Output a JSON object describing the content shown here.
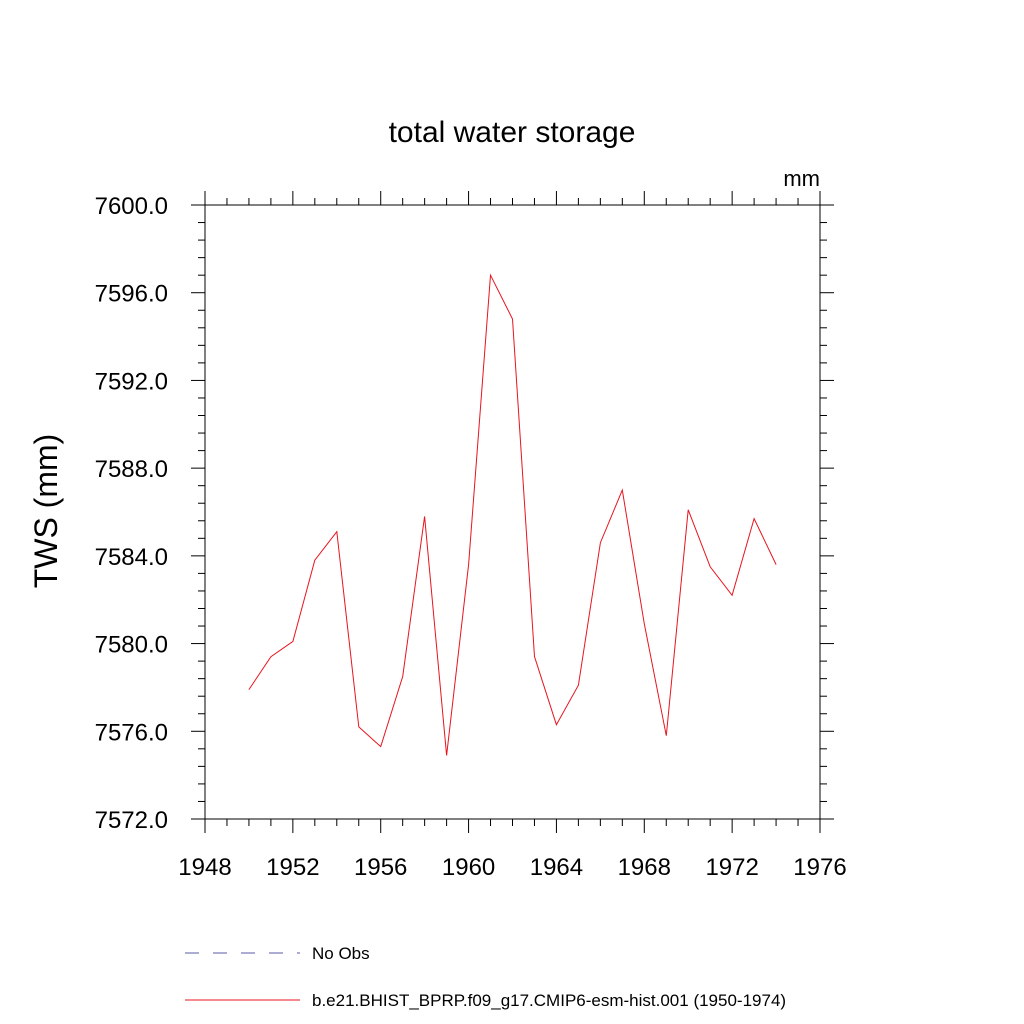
{
  "chart_data": {
    "type": "line",
    "title": "total water storage",
    "units_label": "mm",
    "xlabel": "",
    "ylabel": "TWS  (mm)",
    "xlim": [
      1948,
      1976
    ],
    "ylim": [
      7572.0,
      7600.0
    ],
    "x_ticks": [
      1948,
      1952,
      1956,
      1960,
      1964,
      1968,
      1972,
      1976
    ],
    "x_tick_labels": [
      "1948",
      "1952",
      "1956",
      "1960",
      "1964",
      "1968",
      "1972",
      "1976"
    ],
    "y_ticks": [
      7572.0,
      7576.0,
      7580.0,
      7584.0,
      7588.0,
      7592.0,
      7596.0,
      7600.0
    ],
    "y_tick_labels": [
      "7572.0",
      "7576.0",
      "7580.0",
      "7584.0",
      "7588.0",
      "7592.0",
      "7596.0",
      "7600.0"
    ],
    "grid": false,
    "legend_position": "bottom",
    "series": [
      {
        "name": "No Obs",
        "color": "#5a5aa8",
        "style": "dashed",
        "x": [],
        "values": []
      },
      {
        "name": "b.e21.BHIST_BPRP.f09_g17.CMIP6-esm-hist.001 (1950-1974)",
        "color": "#e8141e",
        "style": "solid",
        "x": [
          1950,
          1951,
          1952,
          1953,
          1954,
          1955,
          1956,
          1957,
          1958,
          1959,
          1960,
          1961,
          1962,
          1963,
          1964,
          1965,
          1966,
          1967,
          1968,
          1969,
          1970,
          1971,
          1972,
          1973,
          1974
        ],
        "values": [
          7577.9,
          7579.4,
          7580.1,
          7583.8,
          7585.1,
          7576.2,
          7575.3,
          7578.5,
          7585.8,
          7574.9,
          7583.6,
          7596.8,
          7594.8,
          7579.4,
          7576.3,
          7578.1,
          7584.6,
          7587.0,
          7580.9,
          7575.8,
          7586.1,
          7583.5,
          7582.2,
          7585.7,
          7583.6
        ]
      }
    ]
  }
}
